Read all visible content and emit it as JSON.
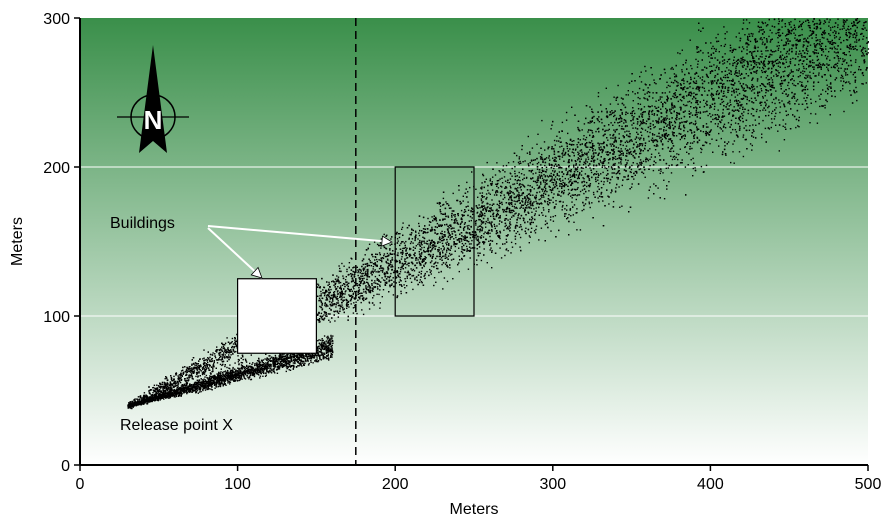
{
  "chart_data": {
    "type": "scatter",
    "title": "",
    "xlabel": "Meters",
    "ylabel": "Meters",
    "xlim": [
      0,
      500
    ],
    "ylim": [
      0,
      300
    ],
    "x_ticks": [
      0,
      100,
      200,
      300,
      400,
      500
    ],
    "y_ticks": [
      0,
      100,
      200,
      300
    ],
    "gridlines_y": [
      100,
      200
    ],
    "grid": true,
    "background": "green gradient",
    "reference_line_x": 175,
    "buildings": [
      {
        "name": "building-1",
        "x": [
          100,
          150
        ],
        "y": [
          75,
          125
        ]
      },
      {
        "name": "building-2",
        "x": [
          200,
          250
        ],
        "y": [
          100,
          200
        ]
      }
    ],
    "annotations": {
      "buildings_label": "Buildings",
      "release_label": "Release point X",
      "north_label": "N"
    },
    "release_point": {
      "x": 30,
      "y": 40
    },
    "series": [
      {
        "values": "dense particle cloud spreading north-east from the release point"
      }
    ]
  },
  "colors": {
    "bg_top": "#3a8f4a",
    "bg_bottom": "#ffffff",
    "points": "#000000",
    "grid": "#ffffff"
  }
}
